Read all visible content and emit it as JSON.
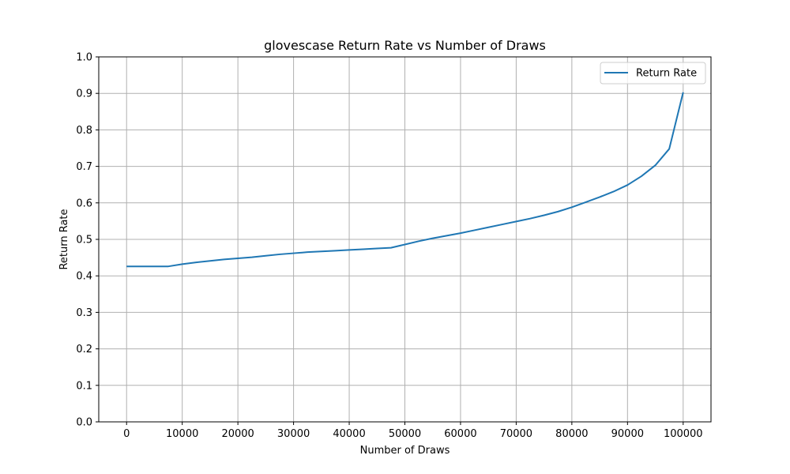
{
  "chart_data": {
    "type": "line",
    "title": "glovescase Return Rate vs Number of Draws",
    "xlabel": "Number of Draws",
    "ylabel": "Return Rate",
    "xlim": [
      -5000,
      105000
    ],
    "ylim": [
      0.0,
      1.0
    ],
    "xticks": [
      0,
      10000,
      20000,
      30000,
      40000,
      50000,
      60000,
      70000,
      80000,
      90000,
      100000
    ],
    "yticks": [
      0.0,
      0.1,
      0.2,
      0.3,
      0.4,
      0.5,
      0.6,
      0.7,
      0.8,
      0.9,
      1.0
    ],
    "grid": true,
    "legend_position": "upper-right",
    "series": [
      {
        "name": "Return Rate",
        "color": "#1f77b4",
        "x": [
          0,
          2500,
          5000,
          7500,
          10000,
          12500,
          15000,
          17500,
          20000,
          22500,
          25000,
          27500,
          30000,
          32500,
          35000,
          37500,
          40000,
          42500,
          45000,
          47500,
          50000,
          52500,
          55000,
          57500,
          60000,
          62500,
          65000,
          67500,
          70000,
          72500,
          75000,
          77500,
          80000,
          82500,
          85000,
          87500,
          90000,
          92500,
          95000,
          97500,
          100000
        ],
        "y": [
          0.426,
          0.426,
          0.426,
          0.426,
          0.432,
          0.437,
          0.441,
          0.445,
          0.448,
          0.451,
          0.455,
          0.459,
          0.462,
          0.465,
          0.467,
          0.469,
          0.471,
          0.473,
          0.475,
          0.477,
          0.486,
          0.495,
          0.503,
          0.51,
          0.517,
          0.525,
          0.533,
          0.541,
          0.549,
          0.557,
          0.566,
          0.576,
          0.588,
          0.602,
          0.616,
          0.631,
          0.649,
          0.673,
          0.703,
          0.748,
          0.903
        ]
      }
    ]
  }
}
